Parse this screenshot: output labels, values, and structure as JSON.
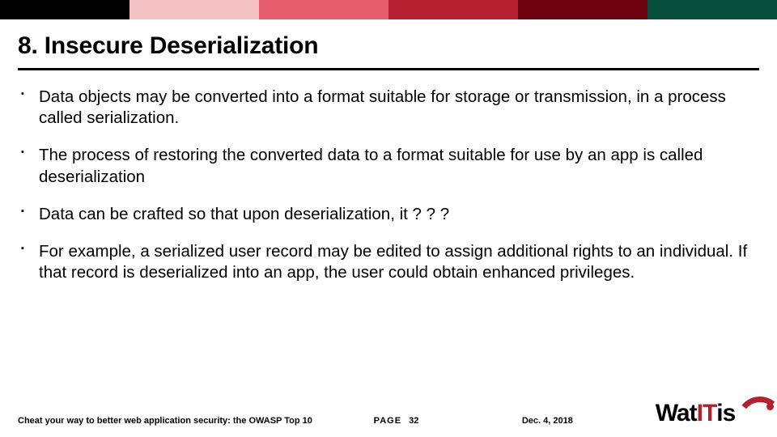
{
  "topbar_colors": [
    "#000000",
    "#f3c1c4",
    "#e55d6c",
    "#b6202e",
    "#6c030e",
    "#064e3b"
  ],
  "title": "8. Insecure Deserialization",
  "bullets": [
    "Data objects may be converted into a format suitable for storage or transmission, in a process called serialization.",
    "The process of restoring the converted data to a format suitable for use by an app is called deserialization",
    "Data can be crafted so that upon deserialization, it ? ? ?",
    "For example, a serialized user record may be edited to assign additional rights to an individual.  If that record is deserialized into an app, the user could obtain enhanced privileges."
  ],
  "footer": {
    "left": "Cheat your way to better web application security: the OWASP Top 10",
    "page_label": "PAGE",
    "page_number": "32",
    "date": "Dec. 4, 2018"
  },
  "logo": {
    "pre": "Wat",
    "mid": "IT",
    "post": "is",
    "accent_color": "#b6202e",
    "base_color": "#000000"
  }
}
